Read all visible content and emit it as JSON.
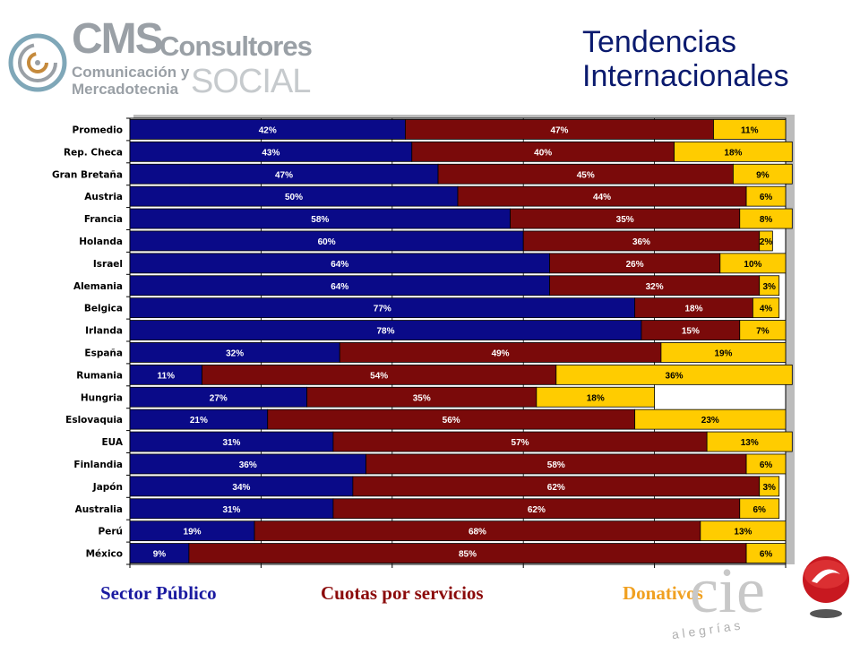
{
  "logo": {
    "brand_main": "CMS",
    "brand_suffix": "Consultores",
    "line1": "Comunicación y",
    "line2": "Mercadotecnia",
    "line3": "SOCIAL"
  },
  "title": {
    "line1": "Tendencias",
    "line2": "Internacionales"
  },
  "legend": {
    "sector_publico": "Sector Público",
    "cuotas": "Cuotas por servicios",
    "donativos": "Donativos"
  },
  "cie_logo": {
    "mark": "cie",
    "tagline": "a l e g r í a s"
  },
  "colors": {
    "sector_publico": "#0a0a88",
    "cuotas": "#7a0a0a",
    "donativos": "#ffcc00"
  },
  "chart_data": {
    "type": "bar",
    "orientation": "horizontal",
    "stacked": "percent",
    "categories": [
      "Promedio",
      "Rep. Checa",
      "Gran Bretaña",
      "Austria",
      "Francia",
      "Holanda",
      "Israel",
      "Alemania",
      "Belgica",
      "Irlanda",
      "España",
      "Rumania",
      "Hungria",
      "Eslovaquia",
      "EUA",
      "Finlandia",
      "Japón",
      "Australia",
      "Perú",
      "México"
    ],
    "series": [
      {
        "name": "Sector Público",
        "values": [
          42,
          43,
          47,
          50,
          58,
          60,
          64,
          64,
          77,
          78,
          32,
          11,
          27,
          21,
          31,
          36,
          34,
          31,
          19,
          9
        ]
      },
      {
        "name": "Cuotas por servicios",
        "values": [
          47,
          40,
          45,
          44,
          35,
          36,
          26,
          32,
          18,
          15,
          49,
          54,
          35,
          56,
          57,
          58,
          62,
          62,
          68,
          85
        ]
      },
      {
        "name": "Donativos",
        "values": [
          11,
          18,
          9,
          6,
          8,
          2,
          10,
          3,
          4,
          7,
          19,
          36,
          18,
          23,
          13,
          6,
          3,
          6,
          13,
          6
        ]
      }
    ],
    "value_suffix": "%",
    "xlim": [
      0,
      100
    ],
    "grid": true,
    "legend_placement": "bottom"
  }
}
